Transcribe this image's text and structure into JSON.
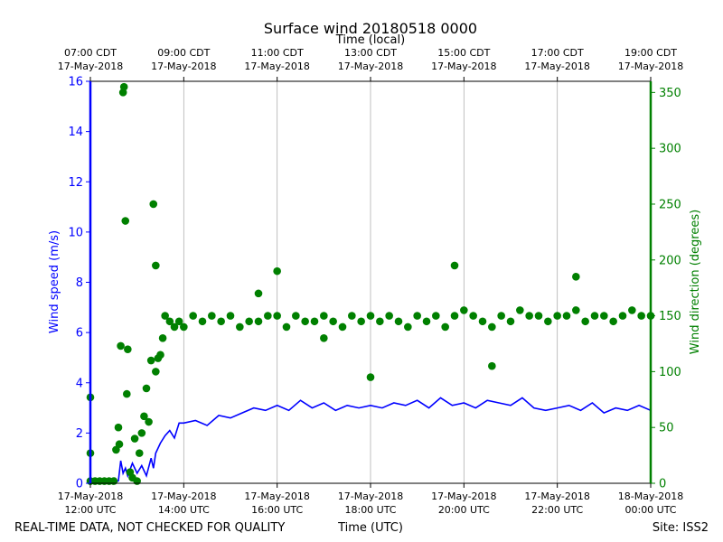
{
  "chart_data": {
    "type": "line+scatter",
    "title": "Surface wind 20180518 0000",
    "top_axis": {
      "label": "Time (local)",
      "ticks": [
        {
          "hour": 0,
          "line1": "07:00 CDT",
          "line2": "17-May-2018"
        },
        {
          "hour": 2,
          "line1": "09:00 CDT",
          "line2": "17-May-2018"
        },
        {
          "hour": 4,
          "line1": "11:00 CDT",
          "line2": "17-May-2018"
        },
        {
          "hour": 6,
          "line1": "13:00 CDT",
          "line2": "17-May-2018"
        },
        {
          "hour": 8,
          "line1": "15:00 CDT",
          "line2": "17-May-2018"
        },
        {
          "hour": 10,
          "line1": "17:00 CDT",
          "line2": "17-May-2018"
        },
        {
          "hour": 12,
          "line1": "19:00 CDT",
          "line2": "17-May-2018"
        }
      ]
    },
    "bottom_axis": {
      "label": "Time (UTC)",
      "xlim_hours": [
        0,
        12
      ],
      "ticks": [
        {
          "hour": 0,
          "line1": "17-May-2018",
          "line2": "12:00 UTC"
        },
        {
          "hour": 2,
          "line1": "17-May-2018",
          "line2": "14:00 UTC"
        },
        {
          "hour": 4,
          "line1": "17-May-2018",
          "line2": "16:00 UTC"
        },
        {
          "hour": 6,
          "line1": "17-May-2018",
          "line2": "18:00 UTC"
        },
        {
          "hour": 8,
          "line1": "17-May-2018",
          "line2": "20:00 UTC"
        },
        {
          "hour": 10,
          "line1": "17-May-2018",
          "line2": "22:00 UTC"
        },
        {
          "hour": 12,
          "line1": "18-May-2018",
          "line2": "00:00 UTC"
        }
      ]
    },
    "left_axis": {
      "label": "Wind speed (m/s)",
      "ylim": [
        0,
        16
      ],
      "ticks": [
        0,
        2,
        4,
        6,
        8,
        10,
        12,
        14,
        16
      ],
      "color": "#0000ff"
    },
    "right_axis": {
      "label": "Wind direction (degrees)",
      "ylim": [
        0,
        360
      ],
      "ticks": [
        0,
        50,
        100,
        150,
        200,
        250,
        300,
        350
      ],
      "color": "#008000"
    },
    "grid": "vertical",
    "series": [
      {
        "name": "Wind speed",
        "kind": "line",
        "axis": "left",
        "color": "#0000ff",
        "x_hours": [
          0,
          0.5,
          0.6,
          0.65,
          0.7,
          0.75,
          0.8,
          0.9,
          1.0,
          1.1,
          1.2,
          1.3,
          1.35,
          1.4,
          1.5,
          1.6,
          1.7,
          1.8,
          1.9,
          2.0,
          2.25,
          2.5,
          2.75,
          3.0,
          3.25,
          3.5,
          3.75,
          4.0,
          4.25,
          4.5,
          4.75,
          5.0,
          5.25,
          5.5,
          5.75,
          6.0,
          6.25,
          6.5,
          6.75,
          7.0,
          7.25,
          7.5,
          7.75,
          8.0,
          8.25,
          8.5,
          8.75,
          9.0,
          9.25,
          9.5,
          9.75,
          10.0,
          10.25,
          10.5,
          10.75,
          11.0,
          11.25,
          11.5,
          11.75,
          12.0
        ],
        "values": [
          0.0,
          0.0,
          0.1,
          0.9,
          0.4,
          0.6,
          0.3,
          0.8,
          0.4,
          0.7,
          0.3,
          1.0,
          0.6,
          1.2,
          1.6,
          1.9,
          2.1,
          1.8,
          2.4,
          2.4,
          2.5,
          2.3,
          2.7,
          2.6,
          2.8,
          3.0,
          2.9,
          3.1,
          2.9,
          3.3,
          3.0,
          3.2,
          2.9,
          3.1,
          3.0,
          3.1,
          3.0,
          3.2,
          3.1,
          3.3,
          3.0,
          3.4,
          3.1,
          3.2,
          3.0,
          3.3,
          3.2,
          3.1,
          3.4,
          3.0,
          2.9,
          3.0,
          3.1,
          2.9,
          3.2,
          2.8,
          3.0,
          2.9,
          3.1,
          2.9
        ]
      },
      {
        "name": "Wind direction",
        "kind": "scatter",
        "axis": "right",
        "color": "#008000",
        "x_hours": [
          0.0,
          0.0,
          0.0,
          0.1,
          0.2,
          0.3,
          0.4,
          0.5,
          0.55,
          0.6,
          0.62,
          0.65,
          0.7,
          0.72,
          0.75,
          0.78,
          0.8,
          0.85,
          0.9,
          0.95,
          1.0,
          1.05,
          1.1,
          1.15,
          1.2,
          1.25,
          1.3,
          1.35,
          1.4,
          1.45,
          1.5,
          1.55,
          1.6,
          1.7,
          1.8,
          1.9,
          2.0,
          2.2,
          2.4,
          2.6,
          2.8,
          3.0,
          3.2,
          3.4,
          3.6,
          3.8,
          4.0,
          4.2,
          4.4,
          4.6,
          4.8,
          5.0,
          5.2,
          5.4,
          5.6,
          5.8,
          6.0,
          6.2,
          6.4,
          6.6,
          6.8,
          7.0,
          7.2,
          7.4,
          7.6,
          7.8,
          8.0,
          8.2,
          8.4,
          8.6,
          8.8,
          9.0,
          9.2,
          9.4,
          9.6,
          9.8,
          10.0,
          10.2,
          10.4,
          10.6,
          10.8,
          11.0,
          11.2,
          11.4,
          11.6,
          11.8,
          12.0,
          1.4,
          3.6,
          4.0,
          5.0,
          6.0,
          7.8,
          8.6,
          10.4
        ],
        "values": [
          27,
          77,
          2,
          2,
          2,
          2,
          2,
          2,
          30,
          50,
          35,
          123,
          350,
          355,
          235,
          80,
          120,
          10,
          5,
          40,
          2,
          27,
          45,
          60,
          85,
          55,
          110,
          250,
          195,
          112,
          115,
          130,
          150,
          145,
          140,
          145,
          140,
          150,
          145,
          150,
          145,
          150,
          140,
          145,
          145,
          150,
          150,
          140,
          150,
          145,
          145,
          150,
          145,
          140,
          150,
          145,
          150,
          145,
          150,
          145,
          140,
          150,
          145,
          150,
          140,
          150,
          155,
          150,
          145,
          140,
          150,
          145,
          155,
          150,
          150,
          145,
          150,
          150,
          155,
          145,
          150,
          150,
          145,
          150,
          155,
          150,
          150,
          100,
          170,
          190,
          130,
          95,
          195,
          105,
          185
        ]
      }
    ],
    "footer_left": "REAL-TIME DATA, NOT CHECKED FOR QUALITY",
    "footer_right": "Site: ISS2"
  }
}
